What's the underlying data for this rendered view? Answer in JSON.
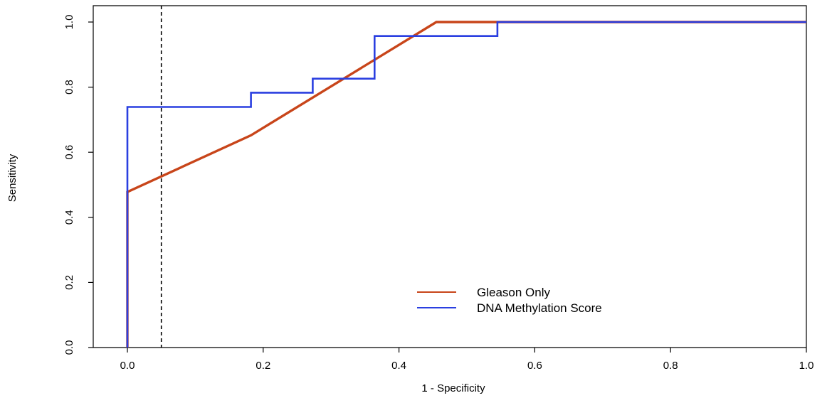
{
  "chart_data": {
    "type": "line",
    "title": "",
    "xlabel": "1 - Specificity",
    "ylabel": "Sensitivity",
    "xlim": [
      0,
      1
    ],
    "ylim": [
      0,
      1
    ],
    "x_ticks": [
      "0.0",
      "0.2",
      "0.4",
      "0.6",
      "0.8",
      "1.0"
    ],
    "y_ticks": [
      "0.0",
      "0.2",
      "0.4",
      "0.6",
      "0.8",
      "1.0"
    ],
    "grid": false,
    "legend_position": "bottom-center",
    "reference_line": {
      "type": "vertical",
      "x": 0.05,
      "style": "dashed",
      "color": "#000000"
    },
    "series": [
      {
        "name": "Gleason Only",
        "color": "#c8451a",
        "x": [
          0.0,
          0.0,
          0.182,
          0.455,
          1.0
        ],
        "y": [
          0.0,
          0.478,
          0.652,
          1.0,
          1.0
        ]
      },
      {
        "name": "DNA Methylation Score",
        "color": "#2a3fe0",
        "step": true,
        "x": [
          0.0,
          0.0,
          0.0,
          0.182,
          0.182,
          0.273,
          0.273,
          0.364,
          0.364,
          0.545,
          0.545,
          1.0
        ],
        "y": [
          0.0,
          0.478,
          0.739,
          0.739,
          0.783,
          0.783,
          0.826,
          0.826,
          0.957,
          0.957,
          1.0,
          1.0
        ]
      }
    ]
  }
}
